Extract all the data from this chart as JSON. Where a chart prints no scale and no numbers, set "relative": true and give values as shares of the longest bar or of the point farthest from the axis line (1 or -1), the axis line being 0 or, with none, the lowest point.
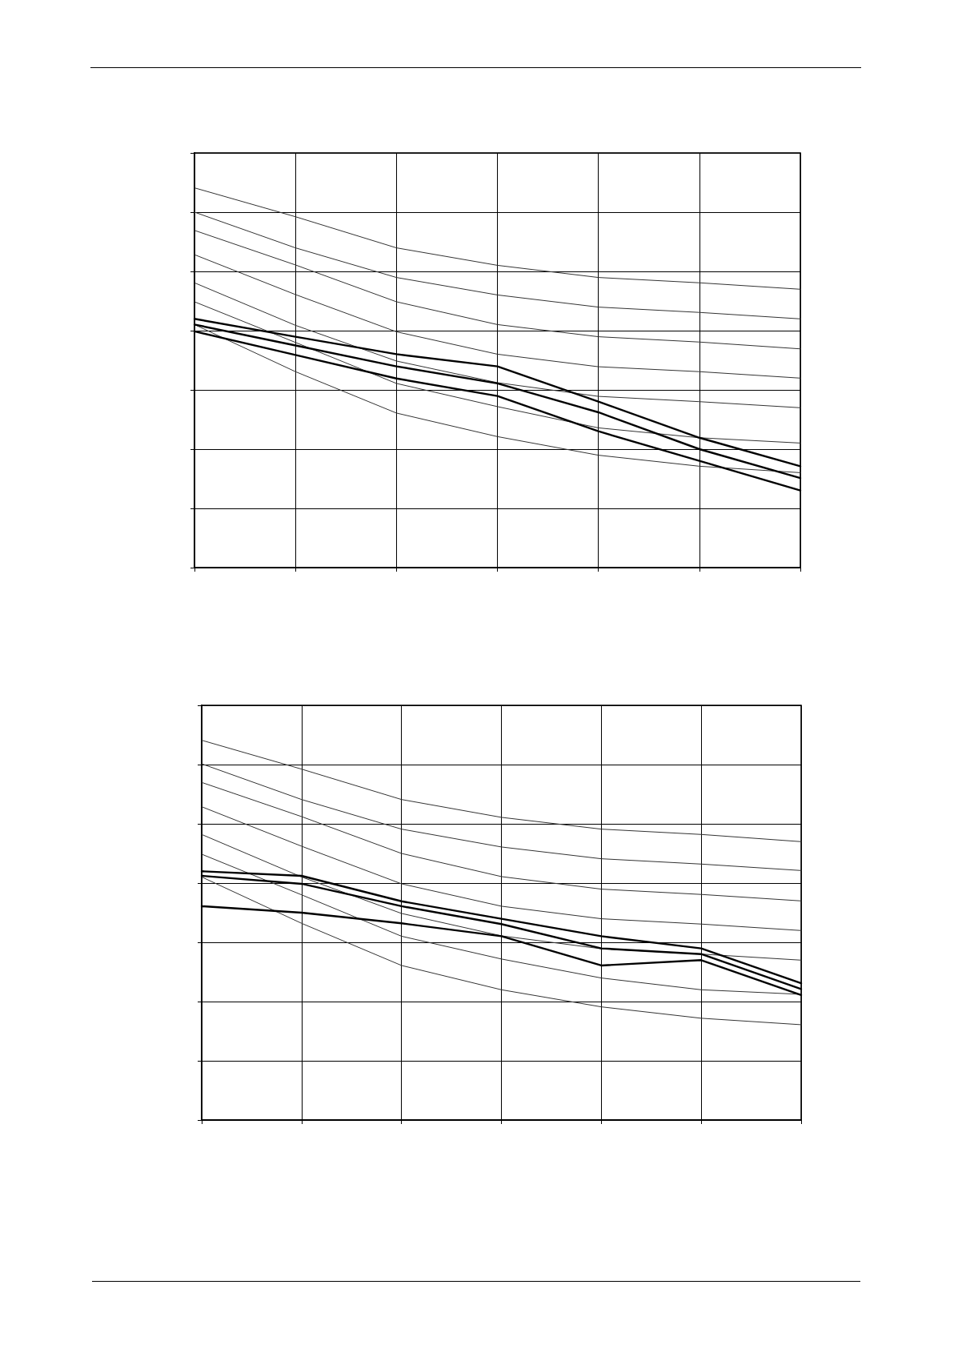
{
  "chart_data": [
    {
      "type": "line",
      "relative": true,
      "grid": true,
      "marker": "none",
      "line_style": "solid",
      "categories": [
        null,
        null,
        null,
        null,
        null,
        null,
        null
      ],
      "series": [
        {
          "color": "#333333",
          "values": [
            1,
            0.924,
            0.842,
            0.796,
            0.764,
            0.75,
            0.733
          ]
        },
        {
          "color": "#333333",
          "values": [
            0.936,
            0.842,
            0.764,
            0.718,
            0.686,
            0.672,
            0.655
          ]
        },
        {
          "color": "#333333",
          "values": [
            0.888,
            0.797,
            0.7,
            0.64,
            0.608,
            0.594,
            0.576
          ]
        },
        {
          "color": "#333333",
          "values": [
            0.824,
            0.719,
            0.621,
            0.562,
            0.529,
            0.516,
            0.499
          ]
        },
        {
          "color": "#333333",
          "values": [
            0.75,
            0.638,
            0.544,
            0.487,
            0.451,
            0.437,
            0.421
          ]
        },
        {
          "color": "#333333",
          "values": [
            0.7,
            0.593,
            0.485,
            0.424,
            0.368,
            0.342,
            0.328
          ]
        },
        {
          "color": "#333333",
          "values": [
            0.64,
            0.516,
            0.407,
            0.345,
            0.296,
            0.267,
            0.25
          ]
        },
        {
          "color": "#000000",
          "values": [
            0.655,
            0.608,
            0.562,
            0.53,
            0.437,
            0.342,
            0.267
          ]
        },
        {
          "color": "#000000",
          "values": [
            0.64,
            0.585,
            0.53,
            0.485,
            0.409,
            0.312,
            0.236
          ]
        },
        {
          "color": "#000000",
          "values": [
            0.622,
            0.56,
            0.498,
            0.452,
            0.359,
            0.281,
            0.203
          ]
        }
      ]
    },
    {
      "type": "line",
      "relative": true,
      "grid": true,
      "marker": "none",
      "line_style": "solid",
      "categories": [
        null,
        null,
        null,
        null,
        null,
        null,
        null
      ],
      "series": [
        {
          "color": "#333333",
          "values": [
            1,
            0.924,
            0.844,
            0.797,
            0.766,
            0.752,
            0.733
          ]
        },
        {
          "color": "#333333",
          "values": [
            0.938,
            0.844,
            0.766,
            0.719,
            0.688,
            0.674,
            0.657
          ]
        },
        {
          "color": "#333333",
          "values": [
            0.889,
            0.799,
            0.702,
            0.641,
            0.608,
            0.594,
            0.577
          ]
        },
        {
          "color": "#333333",
          "values": [
            0.825,
            0.721,
            0.622,
            0.563,
            0.53,
            0.516,
            0.499
          ]
        },
        {
          "color": "#333333",
          "values": [
            0.752,
            0.64,
            0.544,
            0.485,
            0.451,
            0.437,
            0.421
          ]
        },
        {
          "color": "#333333",
          "values": [
            0.7,
            0.593,
            0.484,
            0.424,
            0.374,
            0.343,
            0.331
          ]
        },
        {
          "color": "#333333",
          "values": [
            0.64,
            0.518,
            0.407,
            0.343,
            0.298,
            0.268,
            0.251
          ]
        },
        {
          "color": "#000000",
          "values": [
            0.655,
            0.643,
            0.576,
            0.53,
            0.484,
            0.452,
            0.36
          ]
        },
        {
          "color": "#000000",
          "values": [
            0.643,
            0.622,
            0.563,
            0.516,
            0.452,
            0.437,
            0.345
          ]
        },
        {
          "color": "#000000",
          "values": [
            0.563,
            0.546,
            0.518,
            0.484,
            0.407,
            0.421,
            0.329
          ]
        }
      ]
    }
  ]
}
